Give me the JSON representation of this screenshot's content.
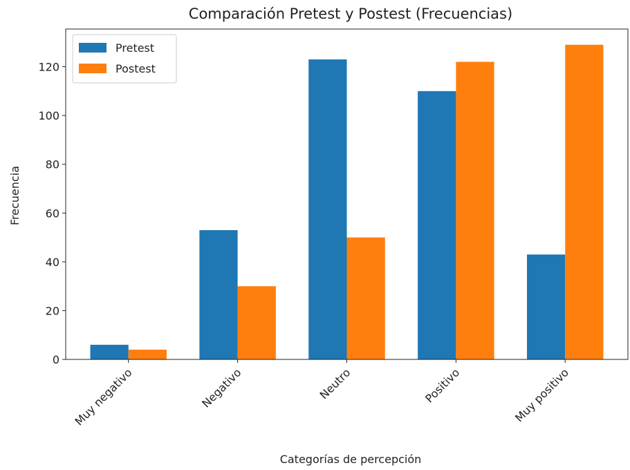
{
  "chart_data": {
    "type": "bar",
    "title": "Comparación Pretest y Postest (Frecuencias)",
    "xlabel": "Categorías de percepción",
    "ylabel": "Frecuencia",
    "categories": [
      "Muy negativo",
      "Negativo",
      "Neutro",
      "Positivo",
      "Muy positivo"
    ],
    "series": [
      {
        "name": "Pretest",
        "color": "#1f77b4",
        "values": [
          6,
          53,
          123,
          110,
          43
        ]
      },
      {
        "name": "Postest",
        "color": "#ff7f0e",
        "values": [
          4,
          30,
          50,
          122,
          129
        ]
      }
    ],
    "ylim": [
      0,
      135.45
    ],
    "yticks": [
      0,
      20,
      40,
      60,
      80,
      100,
      120
    ],
    "legend": "upper left"
  }
}
